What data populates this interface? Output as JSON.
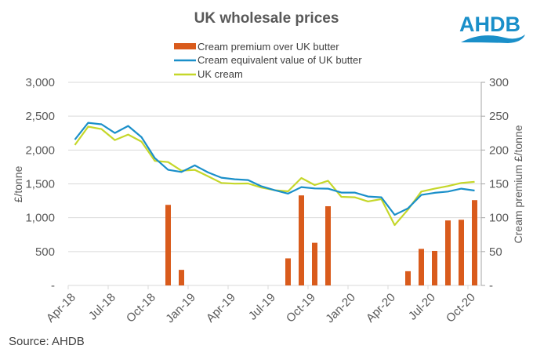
{
  "logo": {
    "text": "AHDB",
    "color": "#1a8fc9"
  },
  "source": "Source: AHDB",
  "colors": {
    "premium_bar": "#d95b1c",
    "butter_line": "#1a8fc9",
    "cream_line": "#c5d72a",
    "grid": "#d9d9d9",
    "axis": "#bfbfbf"
  },
  "chart_data": {
    "type": "bar+line",
    "title": "UK wholesale prices",
    "xlabel": "",
    "ylabel": "£/tonne",
    "y2label": "Cream premium £/tonne",
    "ylim": [
      0,
      3000
    ],
    "y2lim": [
      0,
      300
    ],
    "yticks": [
      "-",
      "500",
      "1,000",
      "1,500",
      "2,000",
      "2,500",
      "3,000"
    ],
    "y2ticks": [
      "-",
      "50",
      "100",
      "150",
      "200",
      "250",
      "300"
    ],
    "grid": true,
    "legend_position": "top-center",
    "categories": [
      "Apr-18",
      "May-18",
      "Jun-18",
      "Jul-18",
      "Aug-18",
      "Sep-18",
      "Oct-18",
      "Nov-18",
      "Dec-18",
      "Jan-19",
      "Feb-19",
      "Mar-19",
      "Apr-19",
      "May-19",
      "Jun-19",
      "Jul-19",
      "Aug-19",
      "Sep-19",
      "Oct-19",
      "Nov-19",
      "Dec-19",
      "Jan-20",
      "Feb-20",
      "Mar-20",
      "Apr-20",
      "May-20",
      "Jun-20",
      "Jul-20",
      "Aug-20",
      "Sep-20",
      "Oct-20"
    ],
    "xtick_labels": [
      "Apr-18",
      "Jul-18",
      "Oct-18",
      "Jan-19",
      "Apr-19",
      "Jul-19",
      "Oct-19",
      "Jan-20",
      "Apr-20",
      "Jul-20",
      "Oct-20"
    ],
    "series": [
      {
        "name": "Cream premium over UK butter",
        "type": "bar",
        "axis": "right",
        "values": [
          0,
          0,
          0,
          0,
          0,
          0,
          0,
          119,
          23,
          0,
          0,
          0,
          0,
          0,
          0,
          0,
          40,
          133,
          63,
          117,
          0,
          0,
          0,
          0,
          0,
          21,
          54,
          51,
          96,
          97,
          126
        ]
      },
      {
        "name": "Cream equivalent value of UK butter",
        "type": "line",
        "axis": "left",
        "values": [
          2155,
          2402,
          2380,
          2252,
          2356,
          2190,
          1881,
          1707,
          1676,
          1773,
          1669,
          1591,
          1568,
          1557,
          1464,
          1406,
          1356,
          1452,
          1433,
          1429,
          1371,
          1371,
          1313,
          1302,
          1043,
          1139,
          1337,
          1368,
          1387,
          1429,
          1402
        ]
      },
      {
        "name": "UK cream",
        "type": "line",
        "axis": "left",
        "values": [
          2074,
          2345,
          2310,
          2147,
          2228,
          2124,
          1840,
          1822,
          1695,
          1707,
          1611,
          1514,
          1503,
          1506,
          1445,
          1406,
          1390,
          1587,
          1483,
          1545,
          1309,
          1302,
          1240,
          1275,
          892,
          1120,
          1387,
          1429,
          1468,
          1514,
          1530
        ]
      }
    ]
  }
}
